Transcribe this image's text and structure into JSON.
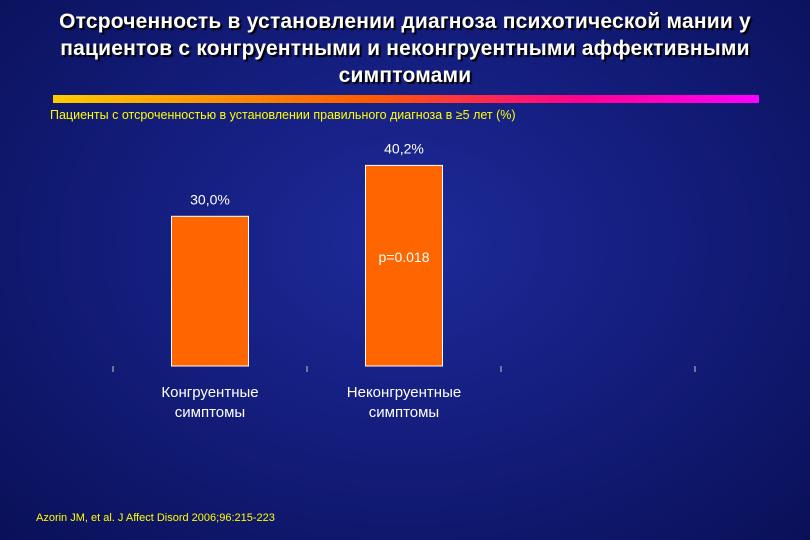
{
  "title_lines": [
    "Отсроченность в установлении диагноза психотической мании у",
    "пациентов с конгруентными и неконгруентными аффективными",
    "симптомами"
  ],
  "subtitle": "Пациенты с отсроченностью в установлении правильного диагноза в ≥5 лет (%)",
  "citation": "Azorin JM, et al. J Affect Disord 2006;96:215-223",
  "colors": {
    "bar": "#ff6600",
    "text": "#ffffff",
    "subtitle": "#ffff00"
  },
  "chart_data": {
    "type": "bar",
    "categories": [
      [
        "Конгруентные",
        "симптомы"
      ],
      [
        "Неконгруентные",
        "симптомы"
      ],
      [
        "",
        ""
      ]
    ],
    "values": [
      30.0,
      40.2,
      null
    ],
    "value_labels": [
      "30,0%",
      "40,2%",
      ""
    ],
    "annotation": "p=0.018",
    "ylim": [
      0,
      50
    ],
    "grid": false,
    "legend": "none"
  }
}
